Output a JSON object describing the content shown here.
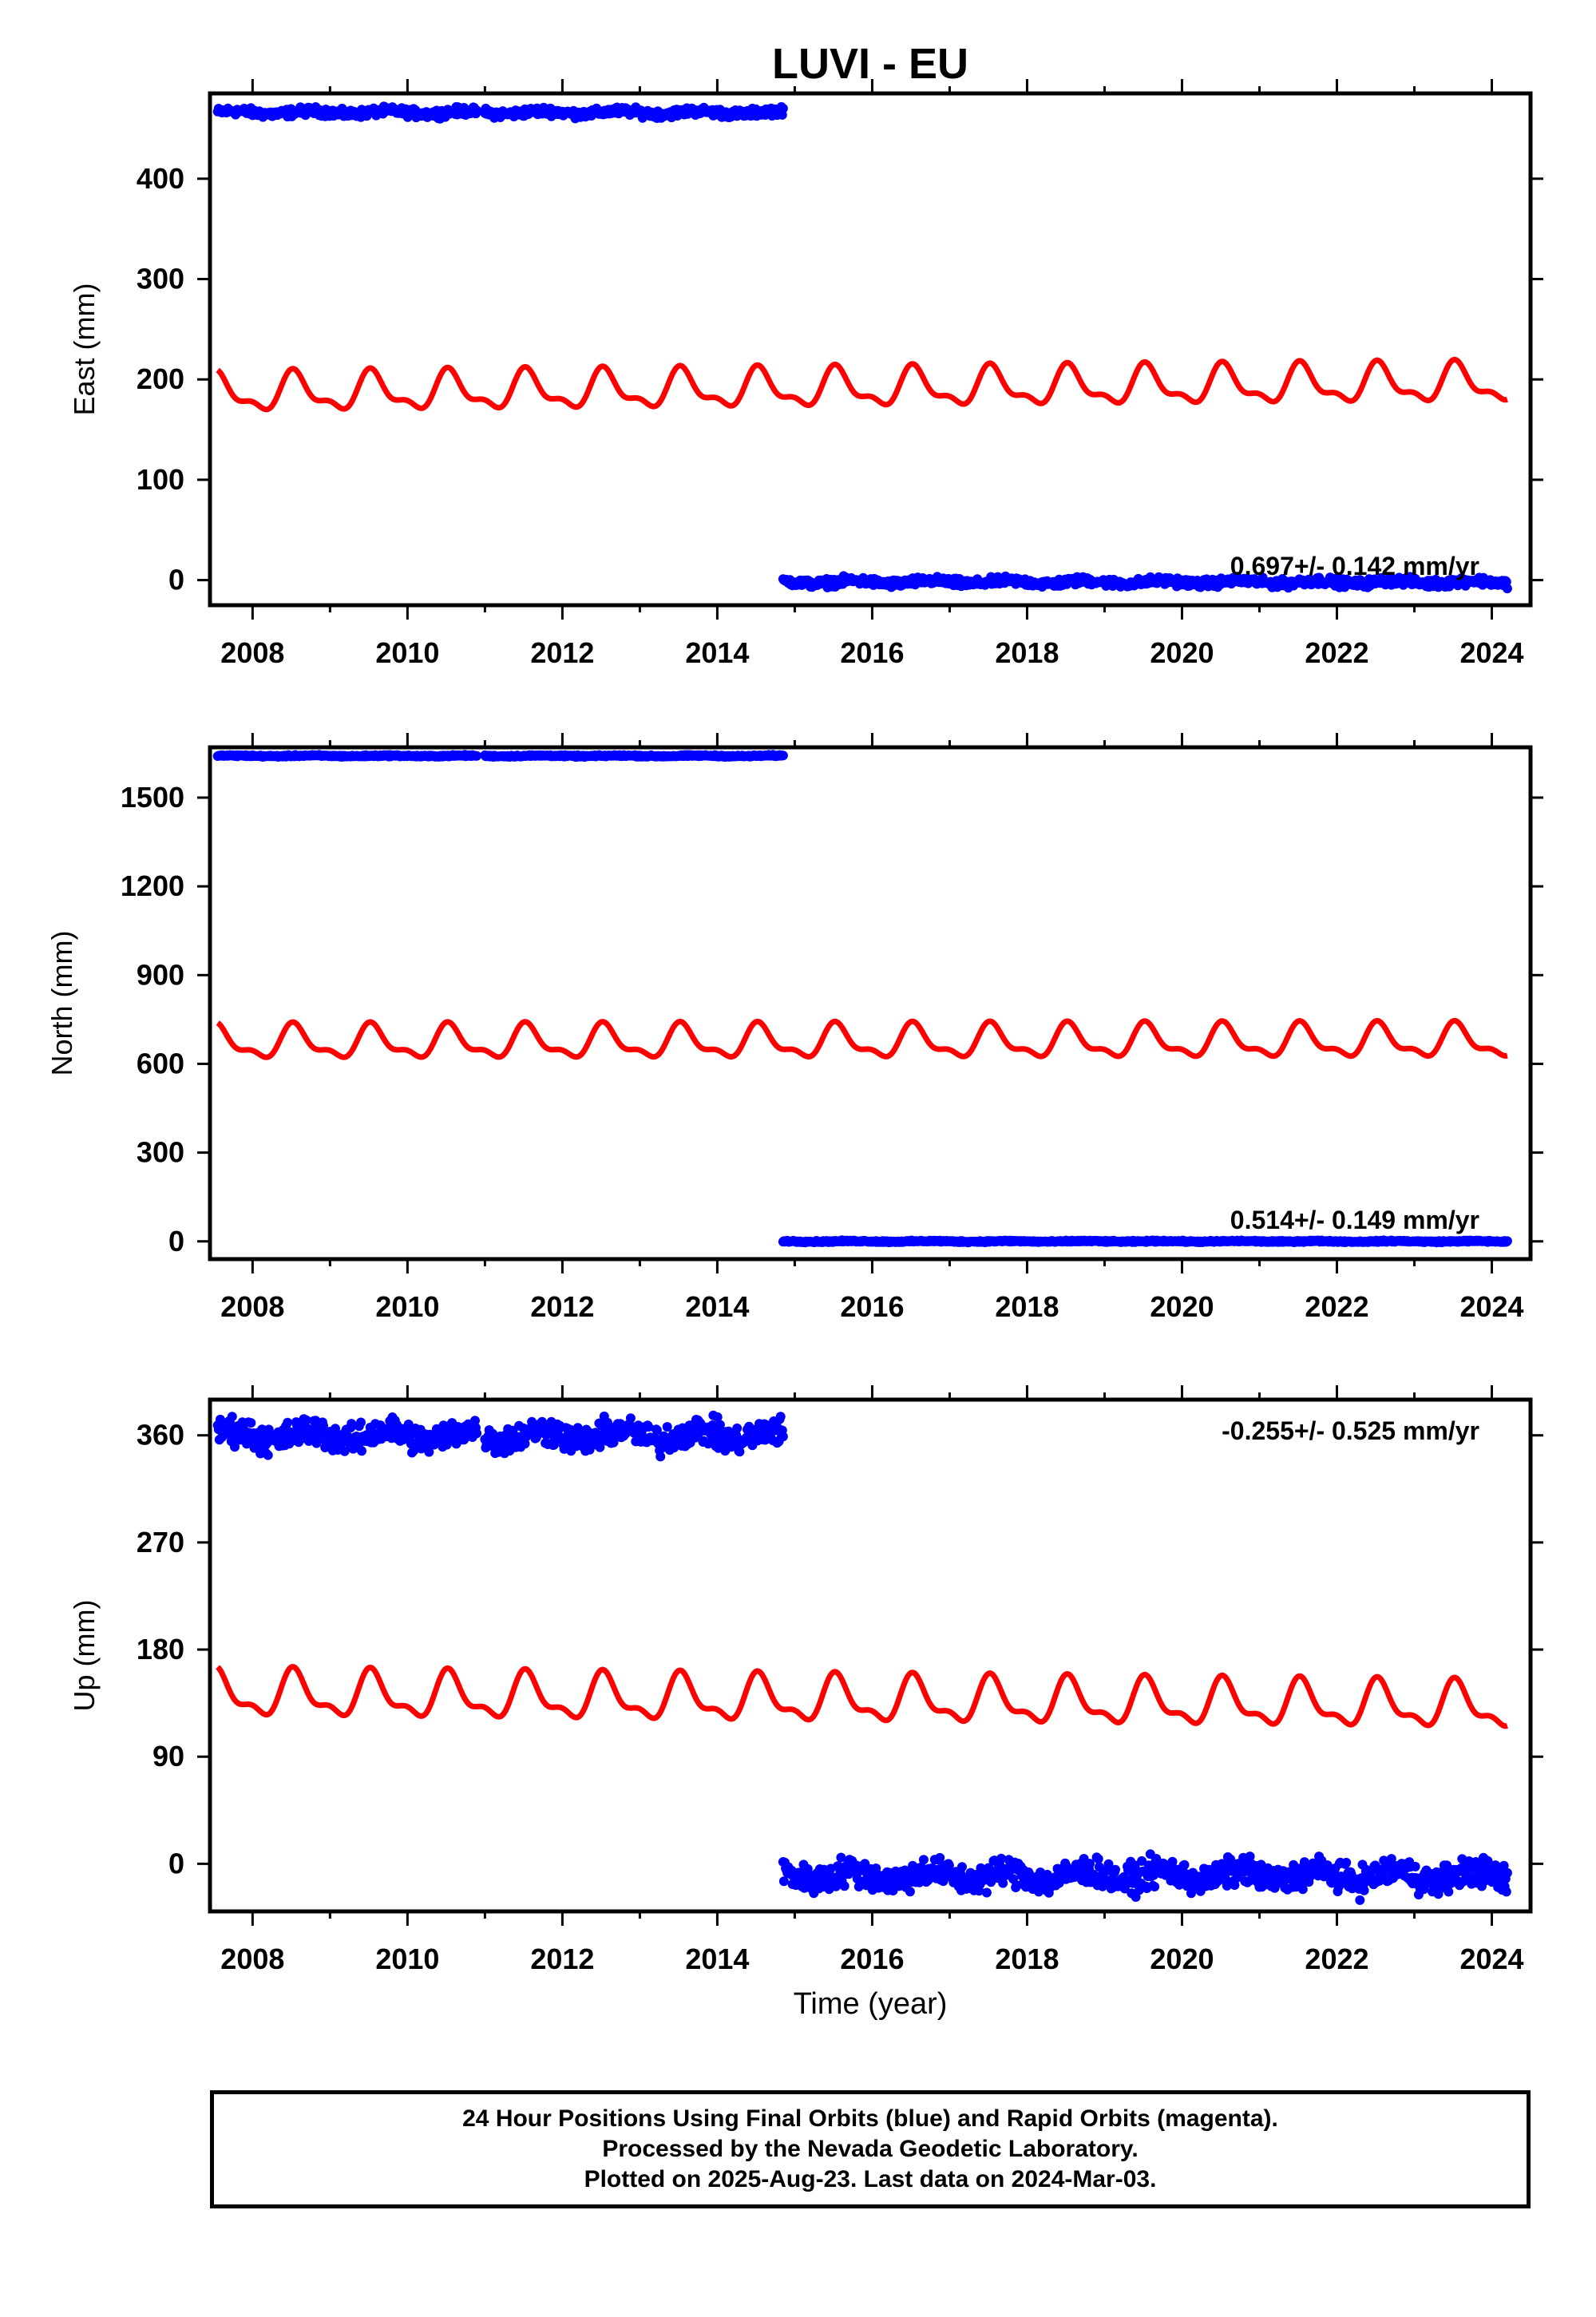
{
  "title": "LUVI - EU",
  "colors": {
    "final": "#0000ff",
    "fit": "#ff0000",
    "axis": "#000000"
  },
  "chart_data": [
    {
      "type": "scatter",
      "ylabel": "East (mm)",
      "xlabel": "",
      "xlim": [
        2007.45,
        2024.5
      ],
      "ylim": [
        -25,
        485
      ],
      "yticks": [
        0,
        100,
        200,
        300,
        400
      ],
      "xticks": [
        2008,
        2010,
        2012,
        2014,
        2016,
        2018,
        2020,
        2022,
        2024
      ],
      "rate_label": "0.697+/- 0.142 mm/yr",
      "rate_position": "bottom-right",
      "series": [
        {
          "segments": [
            {
              "x": [
                2007.55,
                2010.9
              ],
              "y_mean": 466
            },
            {
              "x": [
                2011.0,
                2014.85
              ],
              "y_mean": 466
            },
            {
              "x": [
                2014.85,
                2024.2
              ],
              "y_mean": -2
            }
          ],
          "scatter": 3
        }
      ],
      "seasonal_fit": {
        "baseline": 186,
        "amplitude": 17,
        "drift": 0.6
      }
    },
    {
      "type": "scatter",
      "ylabel": "North (mm)",
      "xlabel": "",
      "xlim": [
        2007.45,
        2024.5
      ],
      "ylim": [
        -60,
        1670
      ],
      "yticks": [
        0,
        300,
        600,
        900,
        1200,
        1500
      ],
      "xticks": [
        2008,
        2010,
        2012,
        2014,
        2016,
        2018,
        2020,
        2022,
        2024
      ],
      "rate_label": "0.514+/- 0.149 mm/yr",
      "rate_position": "bottom-right",
      "series": [
        {
          "segments": [
            {
              "x": [
                2007.55,
                2010.9
              ],
              "y_mean": 1641
            },
            {
              "x": [
                2011.0,
                2014.85
              ],
              "y_mean": 1641
            },
            {
              "x": [
                2014.85,
                2024.2
              ],
              "y_mean": 0
            }
          ],
          "scatter": 2
        }
      ],
      "seasonal_fit": {
        "baseline": 670,
        "amplitude": 50,
        "drift": 0.3
      }
    },
    {
      "type": "scatter",
      "ylabel": "Up (mm)",
      "xlabel": "Time (year)",
      "xlim": [
        2007.45,
        2024.5
      ],
      "ylim": [
        -40,
        390
      ],
      "yticks": [
        0,
        90,
        180,
        270,
        360
      ],
      "xticks": [
        2008,
        2010,
        2012,
        2014,
        2016,
        2018,
        2020,
        2022,
        2024
      ],
      "rate_label": "-0.255+/- 0.525 mm/yr",
      "rate_position": "top-right",
      "series": [
        {
          "segments": [
            {
              "x": [
                2007.55,
                2010.9
              ],
              "y_mean": 360
            },
            {
              "x": [
                2011.0,
                2014.85
              ],
              "y_mean": 360
            },
            {
              "x": [
                2014.85,
                2024.2
              ],
              "y_mean": -10
            }
          ],
          "scatter": 9
        }
      ],
      "seasonal_fit": {
        "baseline": 142,
        "amplitude": 17,
        "drift": -0.6
      }
    }
  ],
  "caption": {
    "line1": "24 Hour Positions Using Final Orbits (blue) and Rapid Orbits (magenta).",
    "line2": "Processed by the Nevada Geodetic Laboratory.",
    "line3": "Plotted on 2025-Aug-23. Last data on 2024-Mar-03."
  }
}
